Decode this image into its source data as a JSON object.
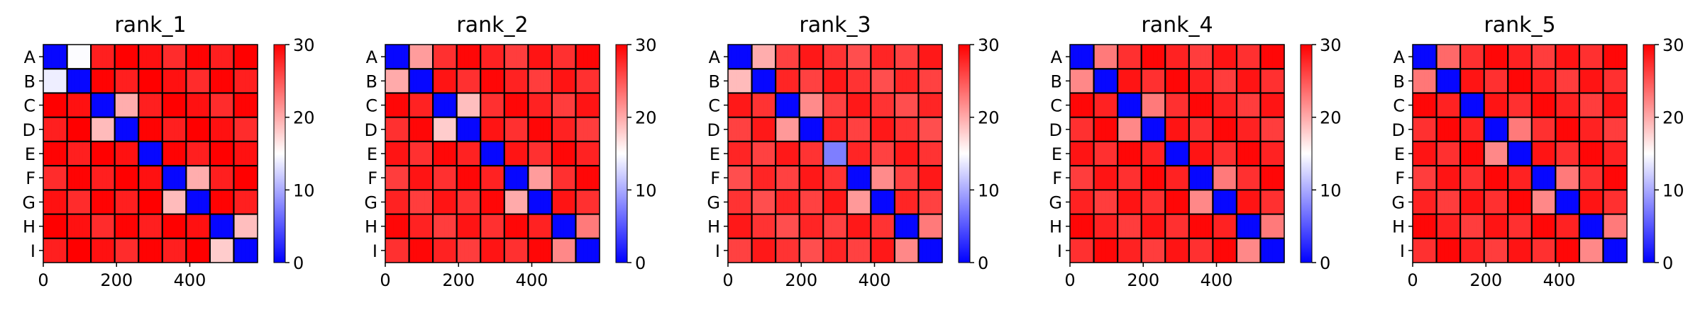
{
  "figure": {
    "panel_titles": [
      "rank_1",
      "rank_2",
      "rank_3",
      "rank_4",
      "rank_5"
    ]
  },
  "chart_data": [
    {
      "type": "heatmap",
      "title": "rank_1",
      "row_labels": [
        "A",
        "B",
        "C",
        "D",
        "E",
        "F",
        "G",
        "H",
        "I"
      ],
      "segment_sizes": [
        65,
        65,
        65,
        65,
        65,
        65,
        65,
        65,
        65
      ],
      "x_ticks": [
        0,
        200,
        400
      ],
      "xlim": [
        0,
        585
      ],
      "colorbar": {
        "min": 0,
        "max": 30,
        "ticks": [
          0,
          10,
          20,
          30
        ],
        "colormap": "bwr"
      },
      "block_values": [
        [
          2,
          14,
          29,
          29,
          29,
          29,
          29,
          29,
          29
        ],
        [
          14,
          2,
          29,
          29,
          29,
          29,
          29,
          29,
          29
        ],
        [
          29,
          29,
          2,
          19,
          29,
          29,
          29,
          29,
          29
        ],
        [
          29,
          29,
          19,
          2,
          29,
          29,
          29,
          29,
          29
        ],
        [
          29,
          29,
          29,
          29,
          2,
          29,
          29,
          29,
          29
        ],
        [
          29,
          29,
          29,
          29,
          29,
          2,
          19,
          29,
          29
        ],
        [
          29,
          29,
          29,
          29,
          29,
          19,
          2,
          29,
          29
        ],
        [
          29,
          29,
          29,
          29,
          29,
          29,
          29,
          2,
          18
        ],
        [
          29,
          29,
          29,
          29,
          29,
          29,
          29,
          18,
          2
        ]
      ]
    },
    {
      "type": "heatmap",
      "title": "rank_2",
      "row_labels": [
        "A",
        "B",
        "C",
        "D",
        "E",
        "F",
        "G",
        "H",
        "I"
      ],
      "segment_sizes": [
        65,
        65,
        65,
        65,
        65,
        65,
        65,
        65,
        65
      ],
      "x_ticks": [
        0,
        200,
        400
      ],
      "xlim": [
        0,
        585
      ],
      "colorbar": {
        "min": 0,
        "max": 30,
        "ticks": [
          0,
          10,
          20,
          30
        ],
        "colormap": "bwr"
      },
      "block_values": [
        [
          2,
          20,
          28,
          28,
          28,
          28,
          28,
          28,
          28
        ],
        [
          20,
          2,
          28,
          28,
          28,
          28,
          28,
          28,
          28
        ],
        [
          28,
          28,
          2,
          18,
          28,
          28,
          28,
          28,
          28
        ],
        [
          28,
          28,
          18,
          2,
          28,
          28,
          28,
          28,
          28
        ],
        [
          28,
          28,
          28,
          28,
          2,
          28,
          28,
          28,
          28
        ],
        [
          28,
          28,
          28,
          28,
          28,
          2,
          20,
          28,
          28
        ],
        [
          28,
          28,
          28,
          28,
          28,
          20,
          2,
          28,
          28
        ],
        [
          28,
          28,
          28,
          28,
          28,
          28,
          28,
          2,
          22
        ],
        [
          28,
          28,
          28,
          28,
          28,
          28,
          28,
          22,
          2
        ]
      ]
    },
    {
      "type": "heatmap",
      "title": "rank_3",
      "row_labels": [
        "A",
        "B",
        "C",
        "D",
        "E",
        "F",
        "G",
        "H",
        "I"
      ],
      "segment_sizes": [
        65,
        65,
        65,
        65,
        65,
        65,
        65,
        65,
        65
      ],
      "x_ticks": [
        0,
        200,
        400
      ],
      "xlim": [
        0,
        585
      ],
      "colorbar": {
        "min": 0,
        "max": 30,
        "ticks": [
          0,
          10,
          20,
          30
        ],
        "colormap": "bwr"
      },
      "block_values": [
        [
          2,
          19,
          27,
          27,
          27,
          27,
          27,
          27,
          27
        ],
        [
          19,
          2,
          27,
          27,
          27,
          27,
          27,
          27,
          27
        ],
        [
          27,
          27,
          2,
          21,
          27,
          27,
          27,
          27,
          27
        ],
        [
          27,
          27,
          21,
          2,
          27,
          27,
          27,
          27,
          27
        ],
        [
          27,
          27,
          27,
          27,
          9,
          27,
          27,
          27,
          27
        ],
        [
          27,
          27,
          27,
          27,
          27,
          2,
          21,
          27,
          27
        ],
        [
          27,
          27,
          27,
          27,
          27,
          21,
          2,
          27,
          27
        ],
        [
          27,
          27,
          27,
          27,
          27,
          27,
          27,
          2,
          22
        ],
        [
          27,
          27,
          27,
          27,
          27,
          27,
          27,
          22,
          2
        ]
      ]
    },
    {
      "type": "heatmap",
      "title": "rank_4",
      "row_labels": [
        "A",
        "B",
        "C",
        "D",
        "E",
        "F",
        "G",
        "H",
        "I"
      ],
      "segment_sizes": [
        65,
        65,
        65,
        65,
        65,
        65,
        65,
        65,
        65
      ],
      "x_ticks": [
        0,
        200,
        400
      ],
      "xlim": [
        0,
        585
      ],
      "colorbar": {
        "min": 0,
        "max": 30,
        "ticks": [
          0,
          10,
          20,
          30
        ],
        "colormap": "bwr"
      },
      "block_values": [
        [
          2,
          22,
          28,
          28,
          28,
          28,
          28,
          28,
          28
        ],
        [
          22,
          2,
          28,
          28,
          28,
          28,
          28,
          28,
          28
        ],
        [
          28,
          28,
          2,
          22,
          28,
          28,
          28,
          28,
          28
        ],
        [
          28,
          28,
          22,
          2,
          28,
          28,
          28,
          28,
          28
        ],
        [
          28,
          28,
          28,
          28,
          2,
          28,
          28,
          28,
          28
        ],
        [
          28,
          28,
          28,
          28,
          28,
          2,
          22,
          28,
          28
        ],
        [
          28,
          28,
          28,
          28,
          28,
          22,
          2,
          28,
          28
        ],
        [
          28,
          28,
          28,
          28,
          28,
          28,
          28,
          2,
          22
        ],
        [
          28,
          28,
          28,
          28,
          28,
          28,
          28,
          22,
          2
        ]
      ]
    },
    {
      "type": "heatmap",
      "title": "rank_5",
      "row_labels": [
        "A",
        "B",
        "C",
        "D",
        "E",
        "F",
        "G",
        "H",
        "I"
      ],
      "segment_sizes": [
        65,
        65,
        65,
        65,
        65,
        65,
        65,
        65,
        65
      ],
      "x_ticks": [
        0,
        200,
        400
      ],
      "xlim": [
        0,
        585
      ],
      "colorbar": {
        "min": 0,
        "max": 30,
        "ticks": [
          0,
          10,
          20,
          30
        ],
        "colormap": "bwr"
      },
      "block_values": [
        [
          2,
          23,
          28,
          28,
          28,
          28,
          28,
          28,
          28
        ],
        [
          23,
          2,
          28,
          28,
          28,
          28,
          28,
          28,
          28
        ],
        [
          28,
          28,
          2,
          28,
          28,
          28,
          28,
          28,
          28
        ],
        [
          28,
          28,
          28,
          2,
          22,
          28,
          28,
          28,
          28
        ],
        [
          28,
          28,
          28,
          22,
          2,
          28,
          28,
          28,
          28
        ],
        [
          28,
          28,
          28,
          28,
          28,
          2,
          22,
          28,
          28
        ],
        [
          28,
          28,
          28,
          28,
          28,
          22,
          2,
          28,
          28
        ],
        [
          28,
          28,
          28,
          28,
          28,
          28,
          28,
          2,
          22
        ],
        [
          28,
          28,
          28,
          28,
          28,
          28,
          28,
          22,
          2
        ]
      ]
    }
  ]
}
